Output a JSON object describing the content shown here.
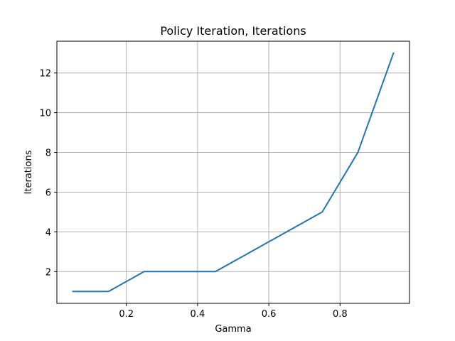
{
  "chart_data": {
    "type": "line",
    "title": "Policy Iteration, Iterations",
    "xlabel": "Gamma",
    "ylabel": "Iterations",
    "xlim": [
      0.005,
      0.995
    ],
    "ylim": [
      0.4,
      13.6
    ],
    "xticks": [
      0.2,
      0.4,
      0.6,
      0.8
    ],
    "xtick_labels": [
      "0.2",
      "0.4",
      "0.6",
      "0.8"
    ],
    "yticks": [
      2,
      4,
      6,
      8,
      10,
      12
    ],
    "ytick_labels": [
      "2",
      "4",
      "6",
      "8",
      "10",
      "12"
    ],
    "grid": true,
    "series": [
      {
        "color": "#1f77b4",
        "x": [
          0.05,
          0.15,
          0.25,
          0.35,
          0.45,
          0.55,
          0.65,
          0.75,
          0.85,
          0.95
        ],
        "y": [
          1,
          1,
          2,
          2,
          2,
          3,
          4,
          5,
          8,
          13
        ]
      }
    ]
  }
}
